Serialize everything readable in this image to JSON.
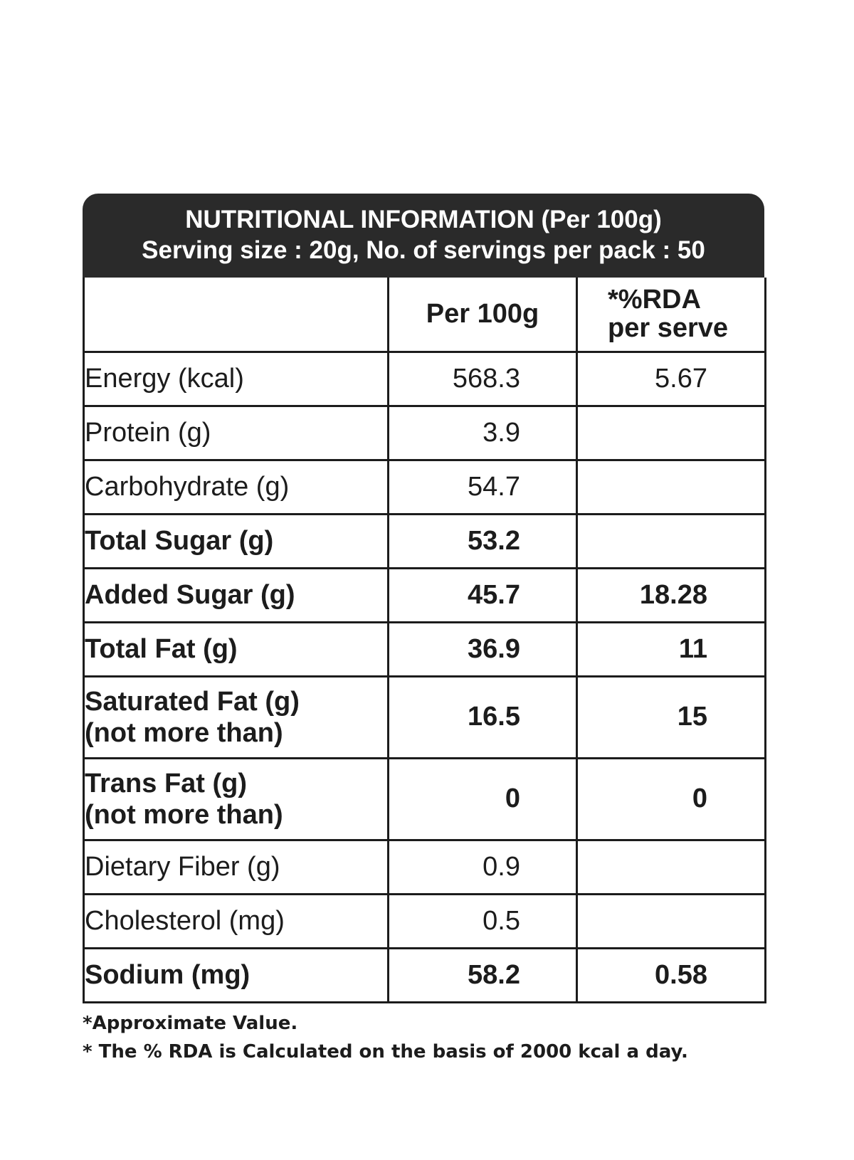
{
  "header": {
    "title": "NUTRITIONAL INFORMATION (Per 100g)",
    "subtitle": "Serving size : 20g, No. of servings per pack : 50"
  },
  "table": {
    "columns": {
      "per100g": "Per 100g",
      "rda_line1": "*%RDA",
      "rda_line2": "per serve"
    },
    "rows": [
      {
        "label": "Energy (kcal)",
        "per100g": "568.3",
        "rda": "5.67"
      },
      {
        "label": "Protein (g)",
        "per100g": "3.9",
        "rda": ""
      },
      {
        "label": "Carbohydrate (g)",
        "per100g": "54.7",
        "rda": ""
      },
      {
        "label": "Total Sugar (g)",
        "per100g": "53.2",
        "rda": ""
      },
      {
        "label": "Added Sugar (g)",
        "per100g": "45.7",
        "rda": "18.28"
      },
      {
        "label": "Total Fat (g)",
        "per100g": "36.9",
        "rda": "11"
      },
      {
        "label": "Saturated Fat (g)",
        "label2": "(not more than)",
        "per100g": "16.5",
        "rda": "15"
      },
      {
        "label": "Trans Fat (g)",
        "label2": "(not more than)",
        "per100g": "0",
        "rda": "0"
      },
      {
        "label": "Dietary Fiber (g)",
        "per100g": "0.9",
        "rda": ""
      },
      {
        "label": "Cholesterol (mg)",
        "per100g": "0.5",
        "rda": ""
      },
      {
        "label": "Sodium (mg)",
        "per100g": "58.2",
        "rda": "0.58"
      }
    ]
  },
  "notes": {
    "line1": "*Approximate Value.",
    "line2": "* The % RDA is Calculated on the basis of 2000 kcal a day."
  }
}
